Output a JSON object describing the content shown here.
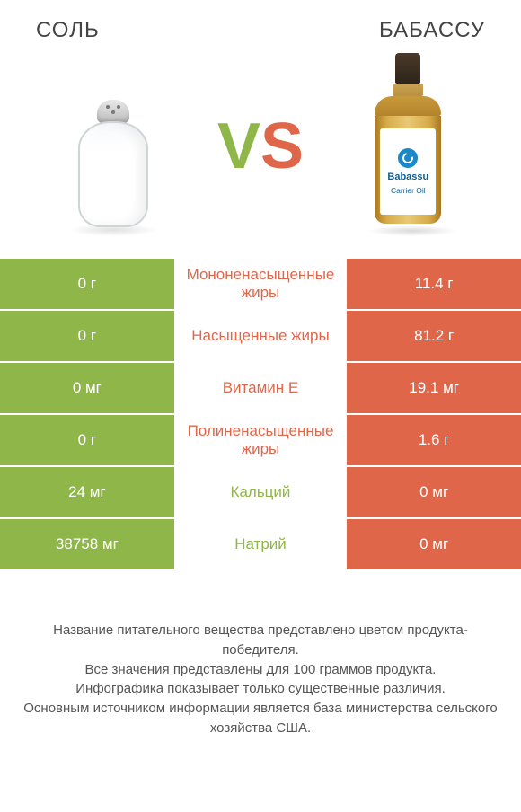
{
  "left": {
    "title": "СОЛЬ"
  },
  "right": {
    "title": "БАБАССУ"
  },
  "vs": {
    "v": "V",
    "s": "S"
  },
  "colors": {
    "left_bg": "#8fb648",
    "right_bg": "#e0664a",
    "mid_left_text": "#8fb648",
    "mid_right_text": "#e0664a"
  },
  "bottle": {
    "label_title": "Babassu",
    "label_sub": "Carrier Oil"
  },
  "rows": [
    {
      "left": "0 г",
      "mid": "Мононенасыщенные жиры",
      "right": "11.4 г",
      "winner": "right"
    },
    {
      "left": "0 г",
      "mid": "Насыщенные жиры",
      "right": "81.2 г",
      "winner": "right"
    },
    {
      "left": "0 мг",
      "mid": "Витамин E",
      "right": "19.1 мг",
      "winner": "right"
    },
    {
      "left": "0 г",
      "mid": "Полиненасыщенные жиры",
      "right": "1.6 г",
      "winner": "right"
    },
    {
      "left": "24 мг",
      "mid": "Кальций",
      "right": "0 мг",
      "winner": "left"
    },
    {
      "left": "38758 мг",
      "mid": "Натрий",
      "right": "0 мг",
      "winner": "left"
    }
  ],
  "footer": {
    "l1": "Название питательного вещества представлено цветом продукта-победителя.",
    "l2": "Все значения представлены для 100 граммов продукта.",
    "l3": "Инфографика показывает только существенные различия.",
    "l4": "Основным источником информации является база министерства сельского хозяйства США."
  }
}
